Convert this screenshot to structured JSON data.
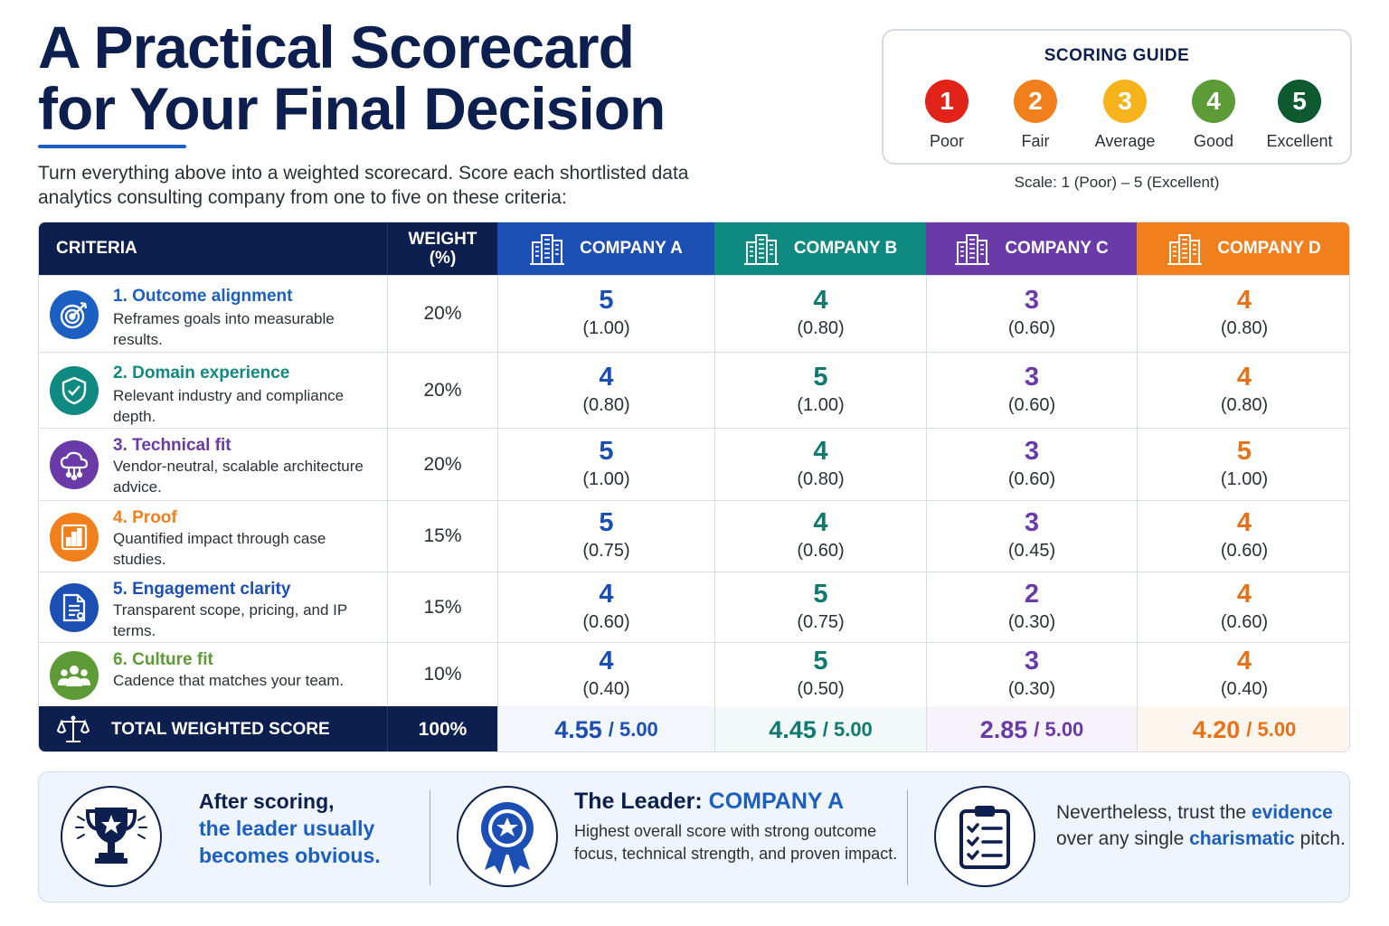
{
  "title_line1": "A Practical Scorecard",
  "title_line2": "for Your Final Decision",
  "intro": "Turn everything above into a weighted scorecard. Score each shortlisted data analytics consulting company from one to five on these criteria:",
  "guide": {
    "title": "SCORING GUIDE",
    "items": [
      {
        "num": "1",
        "label": "Poor",
        "color": "#e2231a"
      },
      {
        "num": "2",
        "label": "Fair",
        "color": "#f07f1c"
      },
      {
        "num": "3",
        "label": "Average",
        "color": "#f6b31b"
      },
      {
        "num": "4",
        "label": "Good",
        "color": "#5c9b35"
      },
      {
        "num": "5",
        "label": "Excellent",
        "color": "#0d5a30"
      }
    ],
    "scale": "Scale: 1 (Poor) – 5 (Excellent)"
  },
  "table": {
    "criteria_header": "CRITERIA",
    "weight_header_1": "WEIGHT",
    "weight_header_2": "(%)",
    "companies": [
      {
        "name": "COMPANY A",
        "color": "#1b4fb4",
        "text_color": "#1b4fb4",
        "total_bg": "#f3f7fd",
        "total": "4.55",
        "max": "/ 5.00"
      },
      {
        "name": "COMPANY B",
        "color": "#0f8a80",
        "text_color": "#0f7a70",
        "total_bg": "#f3f8f8",
        "total": "4.45",
        "max": "/ 5.00"
      },
      {
        "name": "COMPANY C",
        "color": "#6a3aa8",
        "text_color": "#6a3aa8",
        "total_bg": "#f6f3fa",
        "total": "2.85",
        "max": "/ 5.00"
      },
      {
        "name": "COMPANY D",
        "color": "#f07f1c",
        "text_color": "#e8721a",
        "total_bg": "#fdf6ef",
        "total": "4.20",
        "max": "/ 5.00"
      }
    ],
    "rows": [
      {
        "name": "1. Outcome alignment",
        "desc": "Reframes goals into measurable results.",
        "weight": "20%",
        "icon": "target-icon",
        "color": "#1b5fc2",
        "scores": [
          [
            "5",
            "(1.00)"
          ],
          [
            "4",
            "(0.80)"
          ],
          [
            "3",
            "(0.60)"
          ],
          [
            "4",
            "(0.80)"
          ]
        ]
      },
      {
        "name": "2. Domain experience",
        "desc": "Relevant industry and compliance depth.",
        "weight": "20%",
        "icon": "shield-icon",
        "color": "#0f8a80",
        "scores": [
          [
            "4",
            "(0.80)"
          ],
          [
            "5",
            "(1.00)"
          ],
          [
            "3",
            "(0.60)"
          ],
          [
            "4",
            "(0.80)"
          ]
        ]
      },
      {
        "name": "3. Technical fit",
        "desc": "Vendor-neutral, scalable architecture advice.",
        "weight": "20%",
        "icon": "cloud-network-icon",
        "color": "#6a3aa8",
        "scores": [
          [
            "5",
            "(1.00)"
          ],
          [
            "4",
            "(0.80)"
          ],
          [
            "3",
            "(0.60)"
          ],
          [
            "5",
            "(1.00)"
          ]
        ]
      },
      {
        "name": "4. Proof",
        "desc": "Quantified impact through case studies.",
        "weight": "15%",
        "icon": "bar-chart-icon",
        "color": "#f07f1c",
        "scores": [
          [
            "5",
            "(0.75)"
          ],
          [
            "4",
            "(0.60)"
          ],
          [
            "3",
            "(0.45)"
          ],
          [
            "4",
            "(0.60)"
          ]
        ]
      },
      {
        "name": "5. Engagement clarity",
        "desc": "Transparent scope, pricing, and IP terms.",
        "weight": "15%",
        "icon": "document-icon",
        "color": "#1b4fb4",
        "scores": [
          [
            "4",
            "(0.60)"
          ],
          [
            "5",
            "(0.75)"
          ],
          [
            "2",
            "(0.30)"
          ],
          [
            "4",
            "(0.60)"
          ]
        ]
      },
      {
        "name": "6. Culture fit",
        "desc": "Cadence that matches your team.",
        "weight": "10%",
        "icon": "team-icon",
        "color": "#5c9b35",
        "scores": [
          [
            "4",
            "(0.40)"
          ],
          [
            "5",
            "(0.50)"
          ],
          [
            "3",
            "(0.30)"
          ],
          [
            "4",
            "(0.40)"
          ]
        ]
      }
    ],
    "total_label": "TOTAL WEIGHTED SCORE",
    "total_weight": "100%"
  },
  "bottom": {
    "b1_line1": "After scoring,",
    "b1_line2": "the leader usually becomes obvious.",
    "b2_title_prefix": "The Leader: ",
    "b2_title_company": "COMPANY A",
    "b2_desc": "Highest overall score with strong outcome focus, technical strength, and proven impact.",
    "b3_part1": "Nevertheless, trust the",
    "b3_word1": "evidence",
    "b3_part2": "over any single",
    "b3_word2": "charismatic",
    "b3_part3": "pitch."
  }
}
